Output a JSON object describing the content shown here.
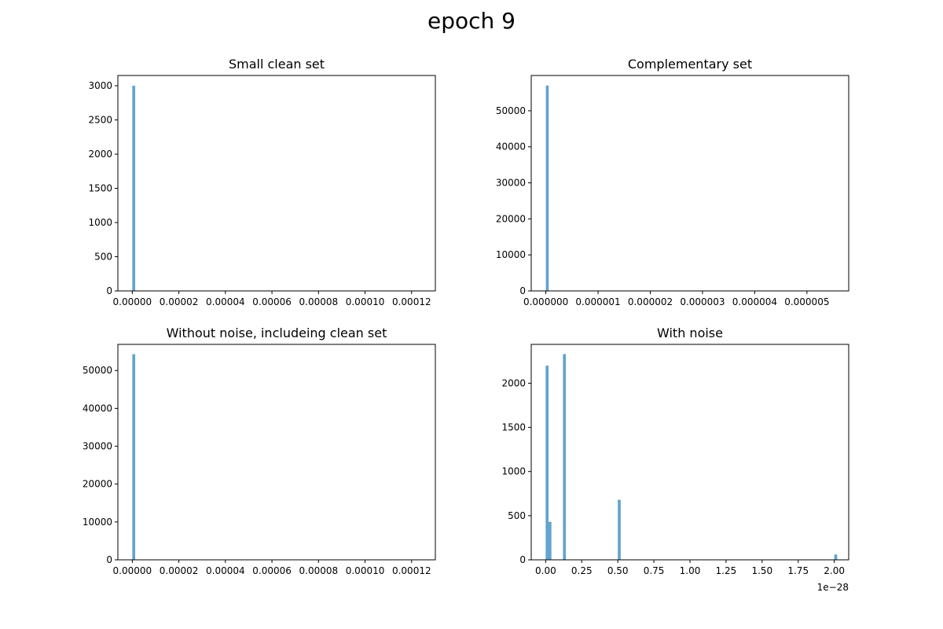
{
  "figure": {
    "suptitle": "epoch 9"
  },
  "chart_data": [
    {
      "type": "bar",
      "title": "Small clean set",
      "xlabel": "",
      "ylabel": "",
      "xlim": [
        -6.2e-06,
        0.0001302
      ],
      "ylim": [
        0,
        3150
      ],
      "x_ticks": [
        0,
        2e-05,
        4e-05,
        6e-05,
        8e-05,
        0.0001,
        0.00012
      ],
      "x_tick_labels": [
        "0.00000",
        "0.00002",
        "0.00004",
        "0.00006",
        "0.00008",
        "0.00010",
        "0.00012"
      ],
      "y_ticks": [
        0,
        500,
        1000,
        1500,
        2000,
        2500,
        3000
      ],
      "y_tick_labels": [
        "0",
        "500",
        "1000",
        "1500",
        "2000",
        "2500",
        "3000"
      ],
      "bin_width": 1.24e-06,
      "bins": [
        {
          "x": 0.0,
          "count": 3000
        }
      ],
      "offset_label": "",
      "color": "#5b9ecb"
    },
    {
      "type": "bar",
      "title": "Complementary set",
      "xlabel": "",
      "ylabel": "",
      "xlim": [
        -2.8e-07,
        5.8e-06
      ],
      "ylim": [
        0,
        59800
      ],
      "x_ticks": [
        0,
        1e-06,
        2e-06,
        3e-06,
        4e-06,
        5e-06
      ],
      "x_tick_labels": [
        "0.000000",
        "0.000001",
        "0.000002",
        "0.000003",
        "0.000004",
        "0.000005"
      ],
      "y_ticks": [
        0,
        10000,
        20000,
        30000,
        40000,
        50000
      ],
      "y_tick_labels": [
        "0",
        "10000",
        "20000",
        "30000",
        "40000",
        "50000"
      ],
      "bin_width": 5.5e-08,
      "bins": [
        {
          "x": 0.0,
          "count": 57000
        }
      ],
      "offset_label": "",
      "color": "#5b9ecb"
    },
    {
      "type": "bar",
      "title": "Without noise, includeing clean set",
      "xlabel": "",
      "ylabel": "",
      "xlim": [
        -6.2e-06,
        0.0001302
      ],
      "ylim": [
        0,
        56900
      ],
      "x_ticks": [
        0,
        2e-05,
        4e-05,
        6e-05,
        8e-05,
        0.0001,
        0.00012
      ],
      "x_tick_labels": [
        "0.00000",
        "0.00002",
        "0.00004",
        "0.00006",
        "0.00008",
        "0.00010",
        "0.00012"
      ],
      "y_ticks": [
        0,
        10000,
        20000,
        30000,
        40000,
        50000
      ],
      "y_tick_labels": [
        "0",
        "10000",
        "20000",
        "30000",
        "40000",
        "50000"
      ],
      "bin_width": 1.24e-06,
      "bins": [
        {
          "x": 0.0,
          "count": 54300
        }
      ],
      "offset_label": "",
      "color": "#5b9ecb"
    },
    {
      "type": "bar",
      "title": "With noise",
      "xlabel": "",
      "ylabel": "",
      "xlim": [
        -0.1,
        2.1
      ],
      "ylim": [
        0,
        2440
      ],
      "x_ticks": [
        0,
        0.25,
        0.5,
        0.75,
        1.0,
        1.25,
        1.5,
        1.75,
        2.0
      ],
      "x_tick_labels": [
        "0.00",
        "0.25",
        "0.50",
        "0.75",
        "1.00",
        "1.25",
        "1.50",
        "1.75",
        "2.00"
      ],
      "y_ticks": [
        0,
        500,
        1000,
        1500,
        2000
      ],
      "y_tick_labels": [
        "0",
        "500",
        "1000",
        "1500",
        "2000"
      ],
      "bin_width": 0.02,
      "bins": [
        {
          "x": 0.0,
          "count": 2200
        },
        {
          "x": 0.02,
          "count": 430
        },
        {
          "x": 0.12,
          "count": 2330
        },
        {
          "x": 0.5,
          "count": 680
        },
        {
          "x": 2.0,
          "count": 60
        }
      ],
      "offset_label": "1e−28",
      "color": "#5b9ecb"
    }
  ]
}
